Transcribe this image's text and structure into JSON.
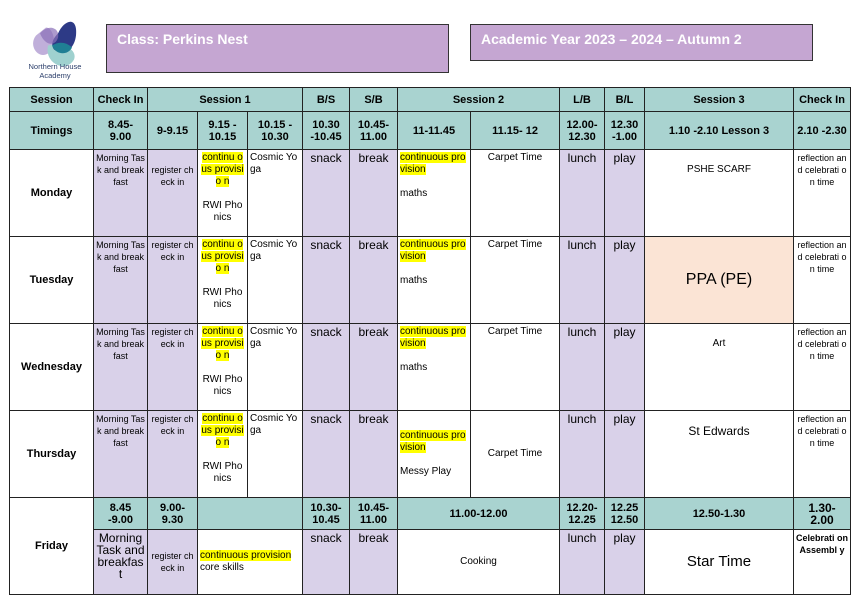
{
  "logo": {
    "text_line1": "Northern House",
    "text_line2": "Academy"
  },
  "class_title": "Class: Perkins Nest",
  "year_title": "Academic Year 2023 – 2024 – Autumn 2",
  "colors": {
    "header": "#a9d3d0",
    "lilac": "#d9d1e9",
    "peach": "#fbe4d5",
    "title_box": "#c5a6d2",
    "highlight": "#ffff00"
  },
  "rows": [
    [
      {
        "t": "Session",
        "c": "h"
      },
      {
        "t": "Check In",
        "c": "h"
      },
      {
        "t": "Session 1",
        "c": "h",
        "span": 3
      },
      {
        "t": "B/S",
        "c": "h"
      },
      {
        "t": "S/B",
        "c": "h"
      },
      {
        "t": "Session 2",
        "c": "h",
        "span": 2
      },
      {
        "t": "L/B",
        "c": "h"
      },
      {
        "t": "B/L",
        "c": "h"
      },
      {
        "t": "Session 3",
        "c": "h"
      },
      {
        "t": "Check In",
        "c": "h"
      }
    ],
    [
      {
        "t": "Timings",
        "c": "h"
      },
      {
        "t": "8.45- 9.00",
        "c": "h"
      },
      {
        "t": "9-9.15",
        "c": "h"
      },
      {
        "t": "9.15 - 10.15",
        "c": "h"
      },
      {
        "t": "10.15 - 10.30",
        "c": "h"
      },
      {
        "t": "10.30 -10.45",
        "c": "h"
      },
      {
        "t": "10.45- 11.00",
        "c": "h"
      },
      {
        "t": "11-11.45",
        "c": "h"
      },
      {
        "t": "11.15- 12",
        "c": "h"
      },
      {
        "t": "12.00- 12.30",
        "c": "h"
      },
      {
        "t": "12.30 -1.00",
        "c": "h"
      },
      {
        "t": "1.10 -2.10 Lesson 3",
        "c": "h"
      },
      {
        "t": "2.10 -2.30",
        "c": "h"
      }
    ],
    [
      {
        "t": "Monday",
        "c": "day"
      },
      {
        "t": "Morning Task and breakfast",
        "c": "l sm"
      },
      {
        "t": "register check in",
        "c": "l sm",
        "pad": true
      },
      {
        "hl": "continu ous provisio n",
        "t": "RWI Phonics"
      },
      {
        "t": "Cosmic Yoga",
        "c": "left"
      },
      {
        "t": "snack",
        "c": "l big"
      },
      {
        "t": "break",
        "c": "l big"
      },
      {
        "hl": "continuous provision",
        "t": "maths",
        "c": "left"
      },
      {
        "t": "Carpet Time"
      },
      {
        "t": "lunch",
        "c": "l big"
      },
      {
        "t": "play",
        "c": "l big"
      },
      {
        "t": "PSHE SCARF",
        "pad": true
      },
      {
        "t": "reflection and celebrati on time",
        "c": "sm"
      }
    ],
    [
      {
        "t": "Tuesday",
        "c": "day"
      },
      {
        "t": "Morning Task and breakfast",
        "c": "l sm"
      },
      {
        "t": "register check in",
        "c": "l sm"
      },
      {
        "hl": "continu ous provisio n",
        "t": "RWI Phonics"
      },
      {
        "t": "Cosmic Yoga",
        "c": "left"
      },
      {
        "t": "snack",
        "c": "l big"
      },
      {
        "t": "break",
        "c": "l big"
      },
      {
        "hl": "continuous provision",
        "t": "maths",
        "c": "left"
      },
      {
        "t": "Carpet Time"
      },
      {
        "t": "lunch",
        "c": "l big"
      },
      {
        "t": "play",
        "c": "l big"
      },
      {
        "t": "PPA (PE)",
        "c": "p"
      },
      {
        "t": "reflection and celebrati on time",
        "c": "sm"
      }
    ],
    [
      {
        "t": "Wednesday",
        "c": "day"
      },
      {
        "t": "Morning Task and breakfast",
        "c": "l sm"
      },
      {
        "t": "register check in",
        "c": "l sm"
      },
      {
        "hl": "continu ous provisio n",
        "t": "RWI Phonics"
      },
      {
        "t": "Cosmic Yoga",
        "c": "left"
      },
      {
        "t": "snack",
        "c": "l big"
      },
      {
        "t": "break",
        "c": "l big"
      },
      {
        "hl": "continuous provision",
        "t": "maths",
        "c": "left"
      },
      {
        "t": "Carpet Time"
      },
      {
        "t": "lunch",
        "c": "l big"
      },
      {
        "t": "play",
        "c": "l big"
      },
      {
        "t": "Art",
        "pad": true
      },
      {
        "t": "reflection and celebrati on time",
        "c": "sm"
      }
    ],
    [
      {
        "t": "Thursday",
        "c": "day"
      },
      {
        "t": "Morning Task and breakfast",
        "c": "l sm"
      },
      {
        "t": "register check in",
        "c": "l sm"
      },
      {
        "hl": "continu ous provisio n",
        "t": "RWI Phonics"
      },
      {
        "t": "Cosmic Yoga",
        "c": "left"
      },
      {
        "t": "snack",
        "c": "l big"
      },
      {
        "t": "break",
        "c": "l big"
      },
      {
        "hl": "continuous provision",
        "t": "Messy Play",
        "c": "left mid"
      },
      {
        "t": "Carpet Time",
        "c": "mid"
      },
      {
        "t": "lunch",
        "c": "l big"
      },
      {
        "t": "play",
        "c": "l big"
      },
      {
        "t": "St Edwards",
        "c": "big",
        "pad": true
      },
      {
        "t": "reflection and celebrati on time",
        "c": "sm"
      }
    ],
    [
      {
        "t": "Friday",
        "c": "day",
        "rowspan": 2
      },
      {
        "t": "8.45 -9.00",
        "c": "h"
      },
      {
        "t": "9.00- 9.30",
        "c": "h"
      },
      {
        "t": "",
        "c": "h",
        "span": 2
      },
      {
        "t": "10.30- 10.45",
        "c": "h"
      },
      {
        "t": "10.45- 11.00",
        "c": "h"
      },
      {
        "t": "11.00-12.00",
        "c": "h",
        "span": 2
      },
      {
        "t": "12.20- 12.25",
        "c": "h"
      },
      {
        "t": "12.25 12.50",
        "c": "h"
      },
      {
        "t": "12.50-1.30",
        "c": "h"
      },
      {
        "t": "1.30- 2.00",
        "c": "h big"
      }
    ],
    [
      {
        "t": "Morning Task and breakfast",
        "c": "l big"
      },
      {
        "t": "register check in",
        "c": "l sm mid"
      },
      {
        "hl": "continuous provision",
        "t": "core skills",
        "c": "left mid",
        "span": 2,
        "nogap": true
      },
      {
        "t": "snack",
        "c": "l big"
      },
      {
        "t": "break",
        "c": "l big"
      },
      {
        "t": "Cooking",
        "c": "mid",
        "span": 2
      },
      {
        "t": "lunch",
        "c": "l big"
      },
      {
        "t": "play",
        "c": "l big"
      },
      {
        "t": "Star Time",
        "c": "mid",
        "big2": true
      },
      {
        "t": "Celebrati on Assembl y",
        "c": "sm",
        "bold": true
      }
    ]
  ]
}
